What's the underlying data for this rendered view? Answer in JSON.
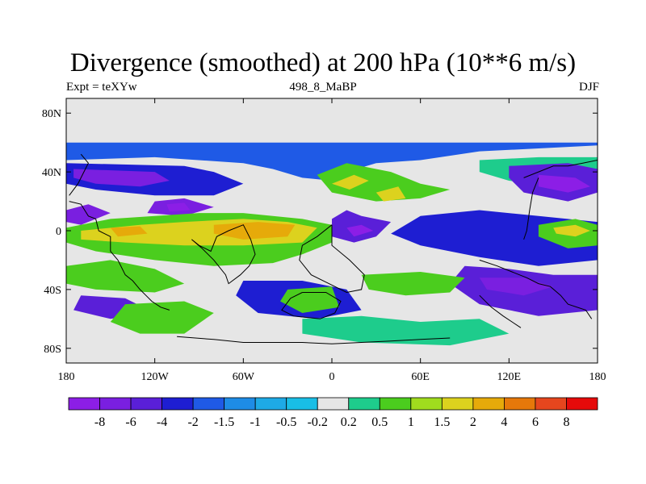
{
  "title": "Divergence (smoothed) at 200 hPa (10**6 m/s)",
  "subtitle_left": "Expt = teXYw",
  "subtitle_center": "498_8_MaBP",
  "subtitle_right": "DJF",
  "chart_data": {
    "type": "heatmap",
    "title": "Divergence (smoothed) at 200 hPa (10**6 m/s)",
    "projection": "cylindrical equidistant, lon 180W-180E, lat 90S-90N",
    "xlim": [
      -180,
      180
    ],
    "ylim": [
      -90,
      90
    ],
    "x_ticks": [
      {
        "value": -180,
        "label": "180"
      },
      {
        "value": -120,
        "label": "120W"
      },
      {
        "value": -60,
        "label": "60W"
      },
      {
        "value": 0,
        "label": "0"
      },
      {
        "value": 60,
        "label": "60E"
      },
      {
        "value": 120,
        "label": "120E"
      },
      {
        "value": 180,
        "label": "180"
      }
    ],
    "y_ticks": [
      {
        "value": 80,
        "label": "80N"
      },
      {
        "value": 40,
        "label": "40N"
      },
      {
        "value": 0,
        "label": "0"
      },
      {
        "value": -40,
        "label": "40S"
      },
      {
        "value": -80,
        "label": "80S"
      }
    ],
    "colorbar": {
      "labels": [
        "-8",
        "-6",
        "-4",
        "-2",
        "-1.5",
        "-1",
        "-0.5",
        "-0.2",
        "0.2",
        "0.5",
        "1",
        "1.5",
        "2",
        "4",
        "6",
        "8"
      ],
      "colors": [
        "#8c1ee6",
        "#7a1fe0",
        "#5a1fd8",
        "#1e1ed2",
        "#1f5ae6",
        "#1e8ce6",
        "#1eaae6",
        "#19bee6",
        "#e6e6e6",
        "#1ecc8c",
        "#4bcd1e",
        "#a0dc1e",
        "#dcd21e",
        "#e6aa0a",
        "#e6780a",
        "#e6461e",
        "#e60a0a"
      ]
    },
    "regions": [
      {
        "cls": 4,
        "pts": [
          [
            -180,
            48
          ],
          [
            -120,
            50
          ],
          [
            -60,
            46
          ],
          [
            -40,
            42
          ],
          [
            -20,
            36
          ],
          [
            0,
            34
          ],
          [
            10,
            40
          ],
          [
            30,
            46
          ],
          [
            60,
            48
          ],
          [
            100,
            54
          ],
          [
            140,
            56
          ],
          [
            180,
            58
          ],
          [
            180,
            60
          ],
          [
            -180,
            60
          ]
        ]
      },
      {
        "cls": 3,
        "pts": [
          [
            -180,
            46
          ],
          [
            -100,
            44
          ],
          [
            -80,
            40
          ],
          [
            -60,
            32
          ],
          [
            -80,
            24
          ],
          [
            -120,
            24
          ],
          [
            -160,
            28
          ],
          [
            -180,
            32
          ]
        ]
      },
      {
        "cls": 1,
        "pts": [
          [
            -175,
            42
          ],
          [
            -120,
            40
          ],
          [
            -110,
            34
          ],
          [
            -130,
            30
          ],
          [
            -160,
            32
          ],
          [
            -175,
            36
          ]
        ]
      },
      {
        "cls": 1,
        "pts": [
          [
            -120,
            20
          ],
          [
            -100,
            22
          ],
          [
            -80,
            16
          ],
          [
            -100,
            10
          ],
          [
            -125,
            12
          ]
        ]
      },
      {
        "cls": 0,
        "pts": [
          [
            -112,
            18
          ],
          [
            -100,
            19
          ],
          [
            -96,
            14
          ],
          [
            -110,
            13
          ]
        ]
      },
      {
        "cls": 1,
        "pts": [
          [
            -180,
            14
          ],
          [
            -165,
            18
          ],
          [
            -150,
            12
          ],
          [
            -170,
            4
          ],
          [
            -180,
            6
          ]
        ]
      },
      {
        "cls": 10,
        "pts": [
          [
            -180,
            2
          ],
          [
            -150,
            8
          ],
          [
            -120,
            10
          ],
          [
            -90,
            12
          ],
          [
            -60,
            12
          ],
          [
            -20,
            8
          ],
          [
            0,
            4
          ],
          [
            0,
            -8
          ],
          [
            -20,
            -16
          ],
          [
            -40,
            -22
          ],
          [
            -80,
            -24
          ],
          [
            -120,
            -20
          ],
          [
            -160,
            -14
          ],
          [
            -180,
            -8
          ]
        ]
      },
      {
        "cls": 12,
        "pts": [
          [
            -170,
            0
          ],
          [
            -130,
            4
          ],
          [
            -100,
            6
          ],
          [
            -60,
            8
          ],
          [
            -30,
            6
          ],
          [
            -10,
            2
          ],
          [
            -20,
            -8
          ],
          [
            -60,
            -10
          ],
          [
            -100,
            -10
          ],
          [
            -140,
            -8
          ],
          [
            -170,
            -6
          ]
        ]
      },
      {
        "cls": 13,
        "pts": [
          [
            -80,
            4
          ],
          [
            -50,
            6
          ],
          [
            -25,
            4
          ],
          [
            -30,
            -4
          ],
          [
            -60,
            -6
          ],
          [
            -80,
            -2
          ]
        ]
      },
      {
        "cls": 13,
        "pts": [
          [
            -150,
            2
          ],
          [
            -130,
            3
          ],
          [
            -125,
            -2
          ],
          [
            -145,
            -4
          ]
        ]
      },
      {
        "cls": 2,
        "pts": [
          [
            0,
            8
          ],
          [
            10,
            14
          ],
          [
            20,
            10
          ],
          [
            40,
            6
          ],
          [
            30,
            -4
          ],
          [
            15,
            -8
          ],
          [
            0,
            -4
          ]
        ]
      },
      {
        "cls": 0,
        "pts": [
          [
            10,
            2
          ],
          [
            20,
            4
          ],
          [
            28,
            0
          ],
          [
            15,
            -4
          ]
        ]
      },
      {
        "cls": 10,
        "pts": [
          [
            -10,
            38
          ],
          [
            10,
            46
          ],
          [
            40,
            40
          ],
          [
            60,
            32
          ],
          [
            80,
            28
          ],
          [
            60,
            22
          ],
          [
            30,
            20
          ],
          [
            0,
            26
          ]
        ]
      },
      {
        "cls": 12,
        "pts": [
          [
            0,
            32
          ],
          [
            15,
            38
          ],
          [
            25,
            34
          ],
          [
            12,
            28
          ]
        ]
      },
      {
        "cls": 12,
        "pts": [
          [
            30,
            26
          ],
          [
            45,
            30
          ],
          [
            50,
            22
          ],
          [
            35,
            20
          ]
        ]
      },
      {
        "cls": 9,
        "pts": [
          [
            100,
            48
          ],
          [
            140,
            50
          ],
          [
            180,
            50
          ],
          [
            180,
            36
          ],
          [
            150,
            30
          ],
          [
            120,
            34
          ],
          [
            100,
            40
          ]
        ]
      },
      {
        "cls": 2,
        "pts": [
          [
            120,
            44
          ],
          [
            160,
            46
          ],
          [
            180,
            42
          ],
          [
            180,
            26
          ],
          [
            160,
            20
          ],
          [
            130,
            26
          ],
          [
            120,
            36
          ]
        ]
      },
      {
        "cls": 0,
        "pts": [
          [
            140,
            38
          ],
          [
            165,
            36
          ],
          [
            175,
            30
          ],
          [
            160,
            26
          ],
          [
            140,
            30
          ]
        ]
      },
      {
        "cls": 3,
        "pts": [
          [
            60,
            10
          ],
          [
            100,
            14
          ],
          [
            140,
            10
          ],
          [
            180,
            6
          ],
          [
            180,
            -20
          ],
          [
            140,
            -24
          ],
          [
            100,
            -18
          ],
          [
            60,
            -10
          ],
          [
            40,
            -2
          ]
        ]
      },
      {
        "cls": 10,
        "pts": [
          [
            140,
            4
          ],
          [
            165,
            8
          ],
          [
            180,
            4
          ],
          [
            180,
            -10
          ],
          [
            160,
            -12
          ],
          [
            140,
            -4
          ]
        ]
      },
      {
        "cls": 12,
        "pts": [
          [
            150,
            2
          ],
          [
            165,
            4
          ],
          [
            175,
            0
          ],
          [
            165,
            -4
          ],
          [
            152,
            -2
          ]
        ]
      },
      {
        "cls": 2,
        "pts": [
          [
            90,
            -24
          ],
          [
            120,
            -26
          ],
          [
            150,
            -30
          ],
          [
            180,
            -30
          ],
          [
            180,
            -54
          ],
          [
            140,
            -58
          ],
          [
            100,
            -50
          ],
          [
            80,
            -36
          ]
        ]
      },
      {
        "cls": 1,
        "pts": [
          [
            100,
            -32
          ],
          [
            130,
            -32
          ],
          [
            150,
            -38
          ],
          [
            130,
            -44
          ],
          [
            105,
            -40
          ]
        ]
      },
      {
        "cls": 10,
        "pts": [
          [
            20,
            -30
          ],
          [
            60,
            -28
          ],
          [
            90,
            -32
          ],
          [
            80,
            -42
          ],
          [
            50,
            -44
          ],
          [
            25,
            -40
          ]
        ]
      },
      {
        "cls": 10,
        "pts": [
          [
            -180,
            -24
          ],
          [
            -150,
            -20
          ],
          [
            -120,
            -26
          ],
          [
            -100,
            -36
          ],
          [
            -120,
            -42
          ],
          [
            -160,
            -40
          ],
          [
            -180,
            -36
          ]
        ]
      },
      {
        "cls": 2,
        "pts": [
          [
            -170,
            -44
          ],
          [
            -140,
            -46
          ],
          [
            -120,
            -56
          ],
          [
            -150,
            -60
          ],
          [
            -175,
            -54
          ]
        ]
      },
      {
        "cls": 10,
        "pts": [
          [
            -140,
            -50
          ],
          [
            -100,
            -48
          ],
          [
            -80,
            -56
          ],
          [
            -100,
            -70
          ],
          [
            -130,
            -70
          ],
          [
            -150,
            -62
          ]
        ]
      },
      {
        "cls": 3,
        "pts": [
          [
            -60,
            -34
          ],
          [
            -20,
            -34
          ],
          [
            10,
            -40
          ],
          [
            20,
            -54
          ],
          [
            -10,
            -60
          ],
          [
            -50,
            -56
          ],
          [
            -65,
            -44
          ]
        ]
      },
      {
        "cls": 10,
        "pts": [
          [
            -30,
            -40
          ],
          [
            0,
            -38
          ],
          [
            5,
            -52
          ],
          [
            -20,
            -56
          ],
          [
            -35,
            -48
          ]
        ]
      },
      {
        "cls": 9,
        "pts": [
          [
            -20,
            -60
          ],
          [
            20,
            -58
          ],
          [
            60,
            -62
          ],
          [
            100,
            -60
          ],
          [
            120,
            -70
          ],
          [
            80,
            -78
          ],
          [
            20,
            -76
          ],
          [
            -20,
            -70
          ]
        ]
      }
    ],
    "coastlines": [
      [
        [
          -178,
          20
        ],
        [
          -170,
          18
        ],
        [
          -165,
          10
        ],
        [
          -160,
          8
        ],
        [
          -158,
          0
        ],
        [
          -150,
          -4
        ],
        [
          -150,
          -14
        ],
        [
          -145,
          -20
        ],
        [
          -140,
          -30
        ],
        [
          -135,
          -34
        ],
        [
          -130,
          -40
        ],
        [
          -126,
          -44
        ],
        [
          -122,
          -48
        ],
        [
          -116,
          -52
        ],
        [
          -110,
          -54
        ]
      ],
      [
        [
          -95,
          -6
        ],
        [
          -90,
          -10
        ],
        [
          -82,
          -14
        ],
        [
          -78,
          -4
        ],
        [
          -70,
          0
        ],
        [
          -60,
          4
        ],
        [
          -55,
          -6
        ],
        [
          -52,
          -16
        ],
        [
          -56,
          -24
        ],
        [
          -62,
          -30
        ],
        [
          -70,
          -36
        ],
        [
          -72,
          -30
        ],
        [
          -80,
          -20
        ],
        [
          -88,
          -12
        ],
        [
          -95,
          -6
        ]
      ],
      [
        [
          0,
          4
        ],
        [
          -10,
          -4
        ],
        [
          -20,
          -10
        ],
        [
          -22,
          -20
        ],
        [
          -14,
          -30
        ],
        [
          -2,
          -36
        ],
        [
          10,
          -42
        ],
        [
          20,
          -40
        ],
        [
          22,
          -30
        ],
        [
          12,
          -20
        ],
        [
          0,
          -10
        ],
        [
          0,
          4
        ]
      ],
      [
        [
          -20,
          -42
        ],
        [
          -28,
          -46
        ],
        [
          -34,
          -54
        ],
        [
          -26,
          -58
        ],
        [
          -8,
          -60
        ],
        [
          2,
          -56
        ],
        [
          6,
          -48
        ],
        [
          -4,
          -42
        ],
        [
          -20,
          -42
        ]
      ],
      [
        [
          100,
          -20
        ],
        [
          112,
          -24
        ],
        [
          122,
          -28
        ],
        [
          132,
          -32
        ],
        [
          140,
          -36
        ],
        [
          148,
          -38
        ],
        [
          155,
          -44
        ],
        [
          160,
          -50
        ],
        [
          172,
          -54
        ],
        [
          176,
          -60
        ]
      ],
      [
        [
          100,
          -44
        ],
        [
          108,
          -52
        ],
        [
          116,
          -58
        ],
        [
          122,
          -62
        ],
        [
          128,
          -66
        ]
      ],
      [
        [
          -105,
          -72
        ],
        [
          -80,
          -74
        ],
        [
          -60,
          -76
        ],
        [
          -40,
          -76
        ],
        [
          -20,
          -76
        ],
        [
          0,
          -77
        ],
        [
          20,
          -76
        ],
        [
          40,
          -75
        ],
        [
          60,
          -74
        ],
        [
          80,
          -73
        ]
      ],
      [
        [
          130,
          36
        ],
        [
          140,
          40
        ],
        [
          150,
          44
        ],
        [
          160,
          44
        ],
        [
          170,
          46
        ],
        [
          180,
          48
        ]
      ],
      [
        [
          140,
          36
        ],
        [
          136,
          26
        ],
        [
          134,
          14
        ],
        [
          132,
          0
        ],
        [
          130,
          -6
        ]
      ],
      [
        [
          -178,
          24
        ],
        [
          -172,
          32
        ],
        [
          -168,
          40
        ],
        [
          -165,
          46
        ],
        [
          -170,
          52
        ]
      ]
    ]
  }
}
